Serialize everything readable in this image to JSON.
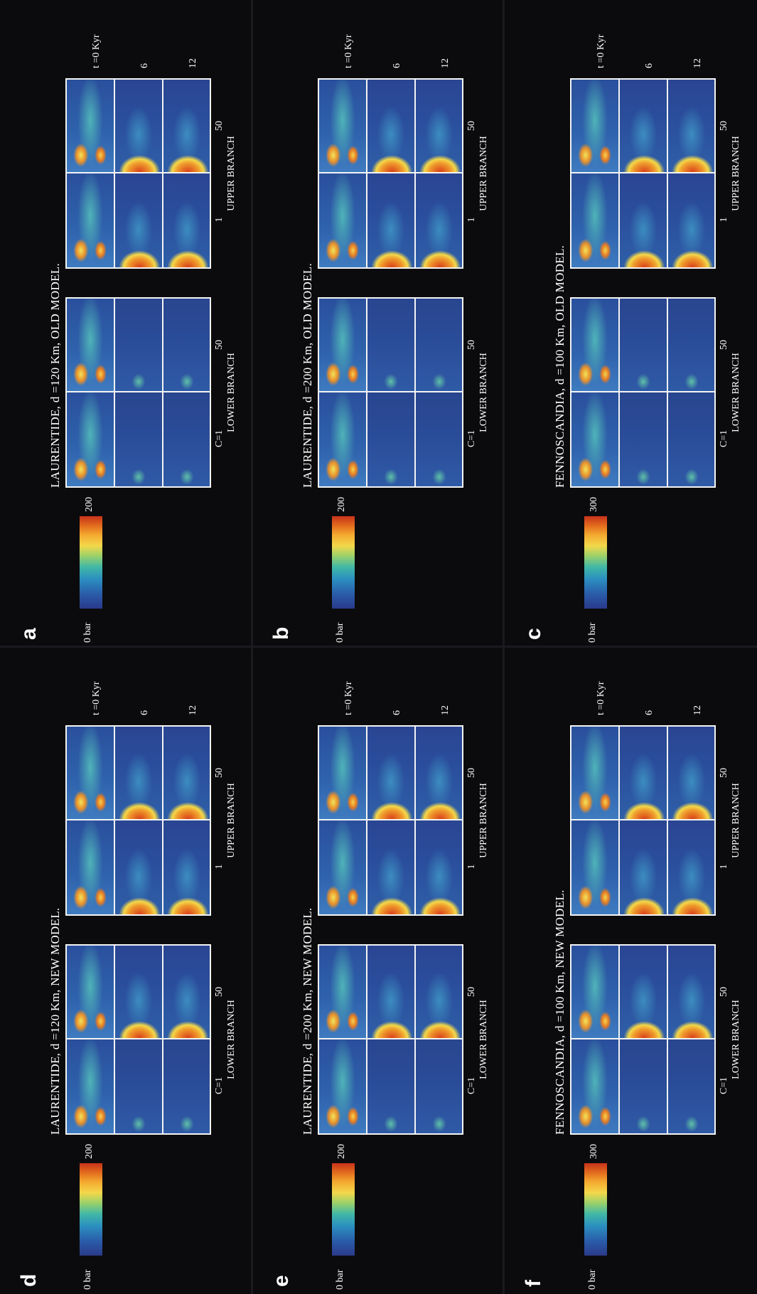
{
  "colors": {
    "frame": "#f4f4f4",
    "background": "#0b0b0d",
    "low": "#2b4b97",
    "high": "#c7321a"
  },
  "panels": [
    {
      "letter": "a",
      "title": "LAURENTIDE, d =120 Km, OLD MODEL.",
      "scale_max": "200",
      "scale_min": "0 bar",
      "c_labels": [
        "C=1",
        "50",
        "1",
        "50"
      ],
      "branches": [
        "LOWER BRANCH",
        "UPPER BRANCH"
      ],
      "time_labels": [
        "t =0 Kyr",
        "6",
        "12"
      ]
    },
    {
      "letter": "b",
      "title": "LAURENTIDE, d =200 Km, OLD MODEL.",
      "scale_max": "200",
      "scale_min": "0 bar",
      "c_labels": [
        "C=1",
        "50",
        "1",
        "50"
      ],
      "branches": [
        "LOWER BRANCH",
        "UPPER BRANCH"
      ],
      "time_labels": [
        "t =0 Kyr",
        "6",
        "12"
      ]
    },
    {
      "letter": "c",
      "title": "FENNOSCANDIA, d =100 Km, OLD MODEL.",
      "scale_max": "300",
      "scale_min": "0 bar",
      "c_labels": [
        "C=1",
        "50",
        "1",
        "50"
      ],
      "branches": [
        "LOWER BRANCH",
        "UPPER BRANCH"
      ],
      "time_labels": [
        "t =0 Kyr",
        "6",
        "12"
      ]
    },
    {
      "letter": "d",
      "title": "LAURENTIDE, d =120 Km, NEW MODEL.",
      "scale_max": "200",
      "scale_min": "0 bar",
      "c_labels": [
        "C=1",
        "50",
        "1",
        "50"
      ],
      "branches": [
        "LOWER BRANCH",
        "UPPER BRANCH"
      ],
      "time_labels": [
        "t =0 Kyr",
        "6",
        "12"
      ]
    },
    {
      "letter": "e",
      "title": "LAURENTIDE, d =200 Km, NEW MODEL.",
      "scale_max": "200",
      "scale_min": "0 bar",
      "c_labels": [
        "C=1",
        "50",
        "1",
        "50"
      ],
      "branches": [
        "LOWER BRANCH",
        "UPPER BRANCH"
      ],
      "time_labels": [
        "t =0 Kyr",
        "6",
        "12"
      ]
    },
    {
      "letter": "f",
      "title": "FENNOSCANDIA, d =100 Km, NEW MODEL.",
      "scale_max": "300",
      "scale_min": "0 bar",
      "c_labels": [
        "C=1",
        "50",
        "1",
        "50"
      ],
      "branches": [
        "LOWER BRANCH",
        "UPPER BRANCH"
      ],
      "time_labels": [
        "t =0 Kyr",
        "6",
        "12"
      ]
    }
  ]
}
